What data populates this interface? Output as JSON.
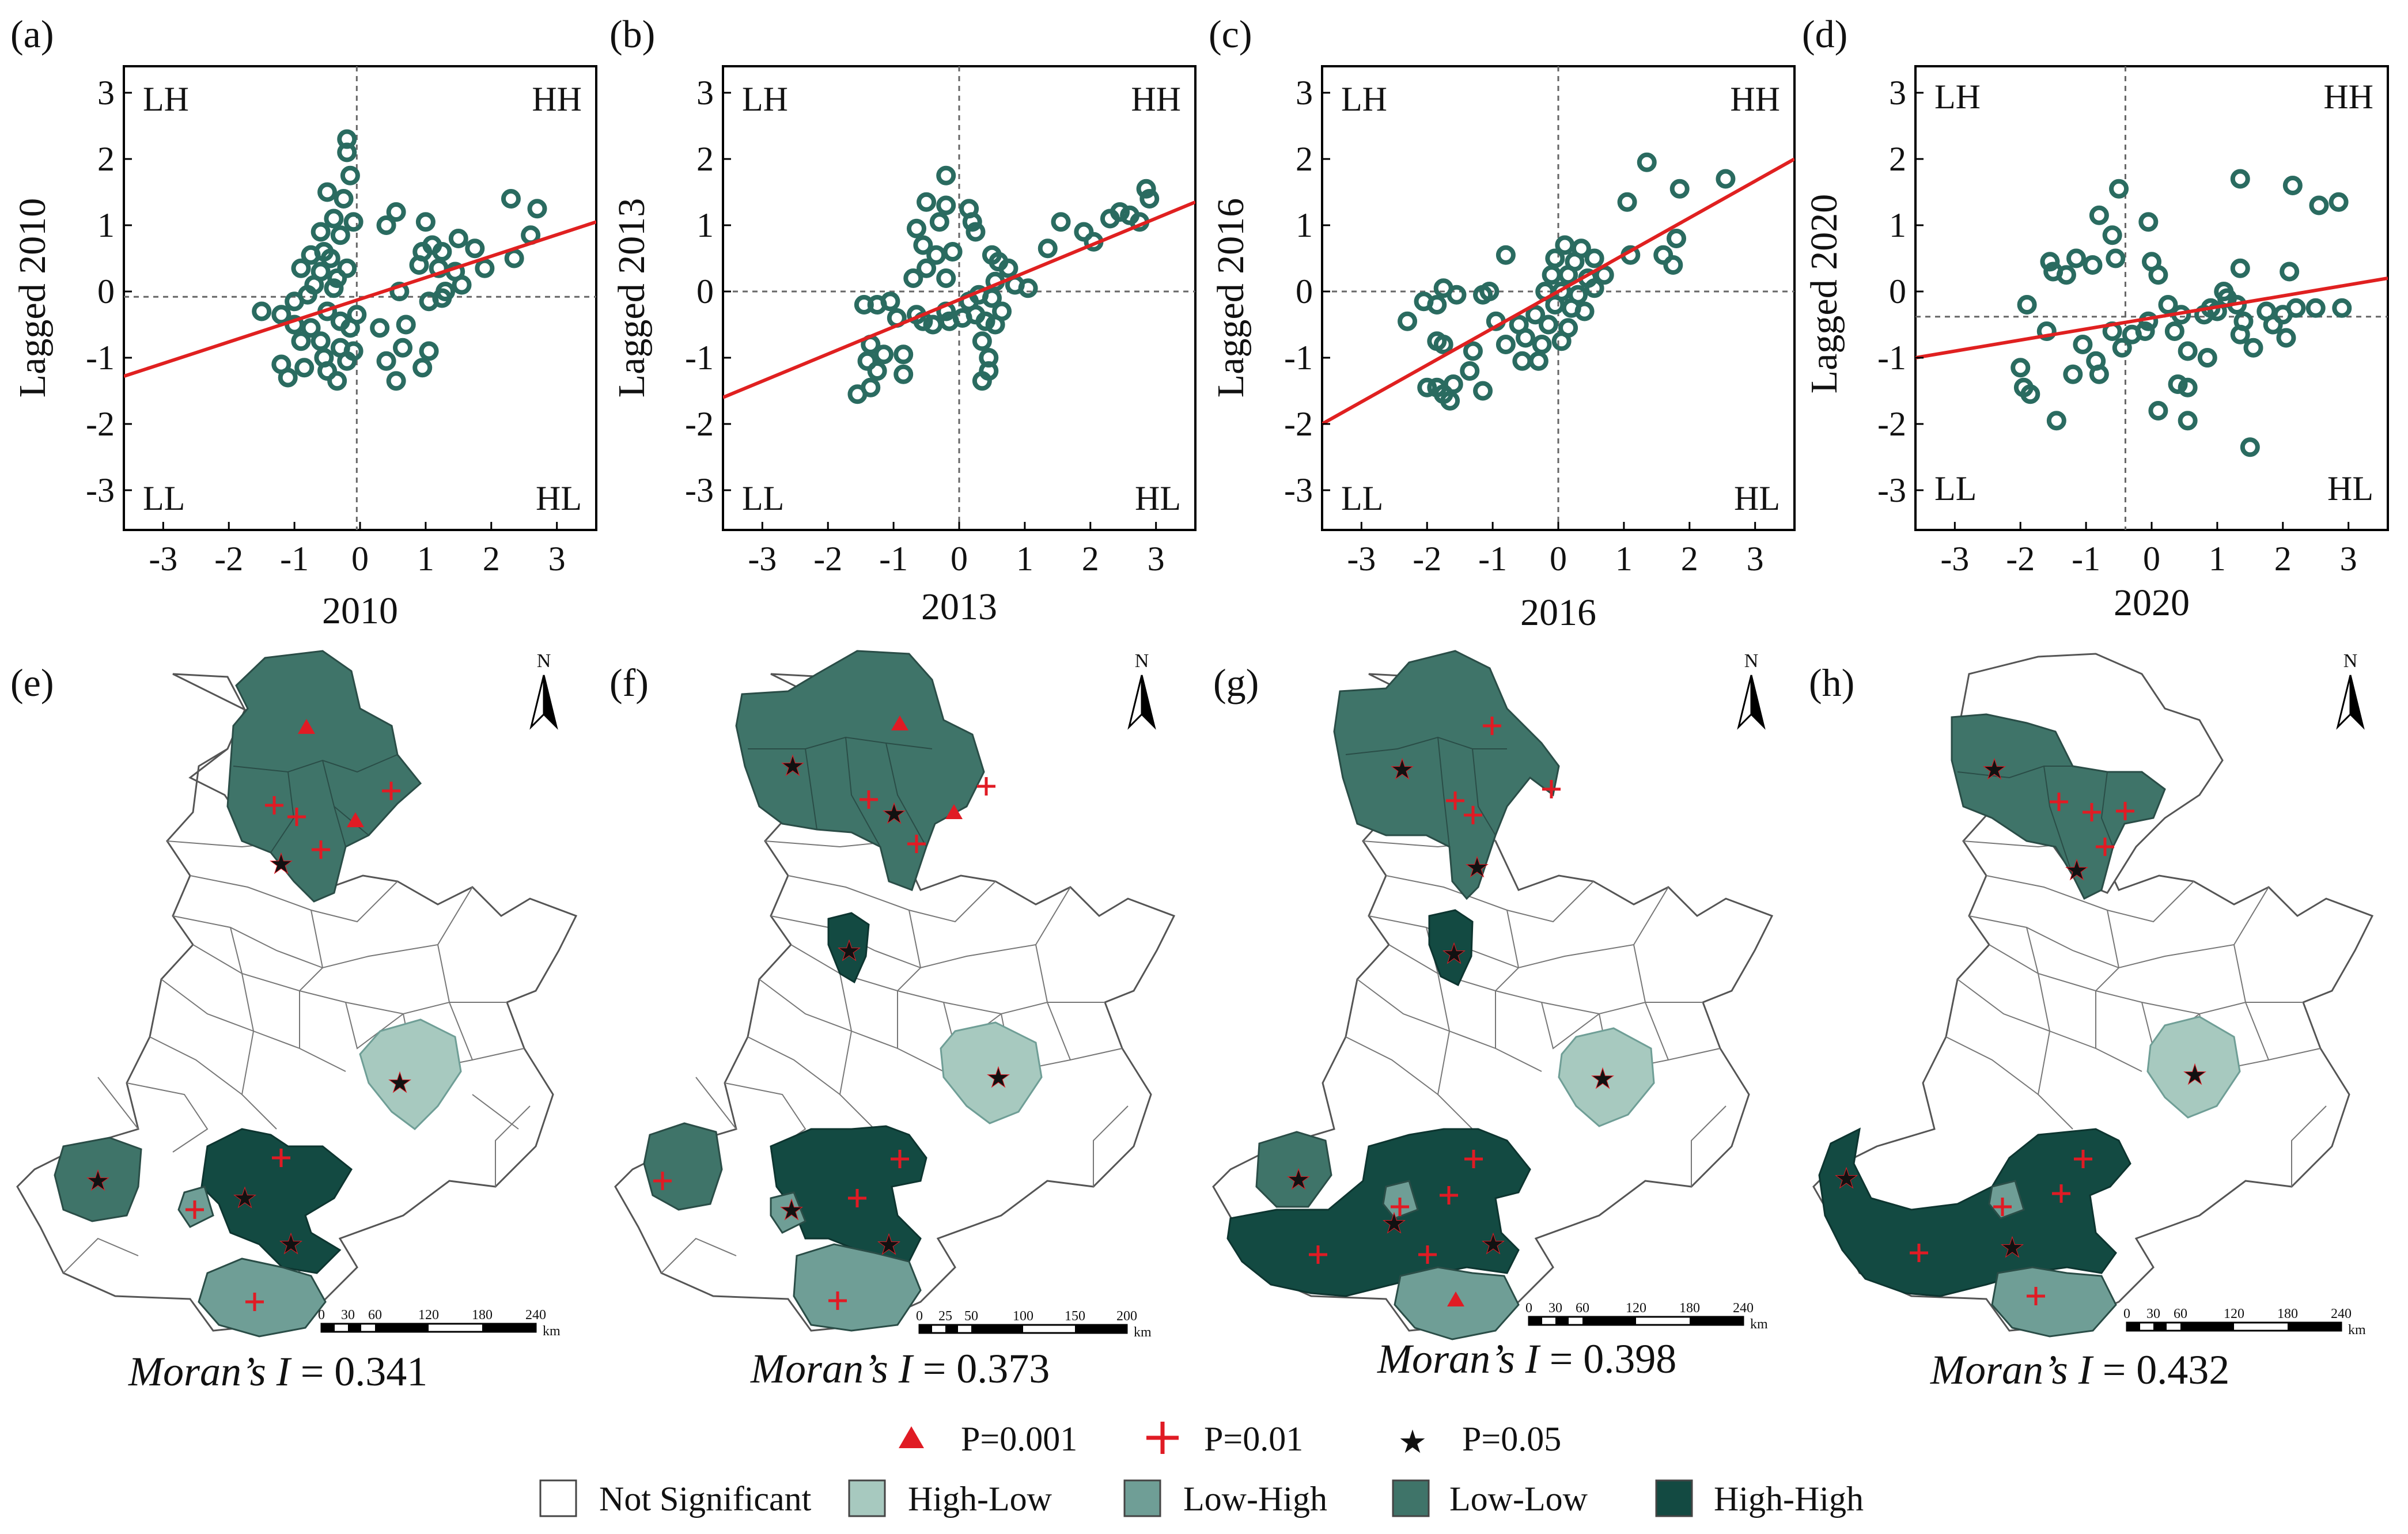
{
  "colors": {
    "not_significant": "#ffffff",
    "high_low": "#a7c9bf",
    "low_high": "#6f9e96",
    "low_low": "#3f7469",
    "high_high": "#134a42",
    "marker": "#e01b24",
    "fit_line": "#e02020",
    "point": "#2a6b60"
  },
  "quadrant_labels": [
    "LH",
    "HH",
    "LL",
    "HL"
  ],
  "chart_data": [
    {
      "type": "scatter",
      "panel": "(a)",
      "xlabel": "2010",
      "ylabel": "Lagged 2010",
      "xlim": [
        -3.6,
        3.6
      ],
      "ylim": [
        -3.6,
        3.4
      ],
      "xticks": [
        -3,
        -2,
        -1,
        0,
        1,
        2,
        3
      ],
      "yticks": [
        -3,
        -2,
        -1,
        0,
        1,
        2,
        3
      ],
      "mean_x": -0.05,
      "mean_y": -0.08,
      "fit_line": {
        "x": [
          -3.6,
          3.6
        ],
        "y": [
          -1.28,
          1.05
        ]
      },
      "points": [
        [
          -0.2,
          2.3
        ],
        [
          -0.2,
          2.1
        ],
        [
          -0.15,
          1.75
        ],
        [
          -0.5,
          1.5
        ],
        [
          -0.25,
          1.4
        ],
        [
          -0.1,
          1.05
        ],
        [
          -0.4,
          1.1
        ],
        [
          -0.6,
          0.9
        ],
        [
          -0.3,
          0.85
        ],
        [
          -0.55,
          0.6
        ],
        [
          -0.75,
          0.55
        ],
        [
          -0.45,
          0.5
        ],
        [
          -0.9,
          0.35
        ],
        [
          -0.6,
          0.3
        ],
        [
          -0.35,
          0.2
        ],
        [
          -0.2,
          0.35
        ],
        [
          -0.7,
          0.1
        ],
        [
          -0.4,
          0.05
        ],
        [
          -1.0,
          -0.15
        ],
        [
          -0.8,
          -0.05
        ],
        [
          -1.5,
          -0.3
        ],
        [
          -1.2,
          -0.35
        ],
        [
          -1.0,
          -0.5
        ],
        [
          -0.75,
          -0.55
        ],
        [
          -0.5,
          -0.3
        ],
        [
          -0.3,
          -0.45
        ],
        [
          -0.15,
          -0.55
        ],
        [
          -0.05,
          -0.35
        ],
        [
          -0.3,
          -0.85
        ],
        [
          -0.6,
          -0.75
        ],
        [
          -0.9,
          -0.75
        ],
        [
          -1.2,
          -1.1
        ],
        [
          -1.1,
          -1.3
        ],
        [
          -0.85,
          -1.15
        ],
        [
          -0.5,
          -1.2
        ],
        [
          -0.35,
          -1.35
        ],
        [
          -0.2,
          -1.05
        ],
        [
          -0.1,
          -0.9
        ],
        [
          -0.55,
          -1.0
        ],
        [
          0.55,
          1.2
        ],
        [
          0.4,
          1.0
        ],
        [
          1.0,
          1.05
        ],
        [
          1.1,
          0.7
        ],
        [
          0.95,
          0.6
        ],
        [
          1.25,
          0.6
        ],
        [
          1.5,
          0.8
        ],
        [
          1.75,
          0.65
        ],
        [
          2.3,
          1.4
        ],
        [
          2.7,
          1.25
        ],
        [
          2.6,
          0.85
        ],
        [
          2.35,
          0.5
        ],
        [
          0.9,
          0.4
        ],
        [
          1.2,
          0.35
        ],
        [
          1.45,
          0.3
        ],
        [
          1.9,
          0.35
        ],
        [
          1.55,
          0.1
        ],
        [
          1.3,
          0.0
        ],
        [
          0.6,
          0.0
        ],
        [
          1.05,
          -0.15
        ],
        [
          1.25,
          -0.1
        ],
        [
          0.7,
          -0.5
        ],
        [
          0.65,
          -0.85
        ],
        [
          1.05,
          -0.9
        ],
        [
          0.95,
          -1.15
        ],
        [
          0.55,
          -1.35
        ],
        [
          0.4,
          -1.05
        ],
        [
          0.3,
          -0.55
        ]
      ]
    },
    {
      "type": "scatter",
      "panel": "(b)",
      "xlabel": "2013",
      "ylabel": "Lagged 2013",
      "xlim": [
        -3.6,
        3.6
      ],
      "ylim": [
        -3.6,
        3.4
      ],
      "xticks": [
        -3,
        -2,
        -1,
        0,
        1,
        2,
        3
      ],
      "yticks": [
        -3,
        -2,
        -1,
        0,
        1,
        2,
        3
      ],
      "mean_x": 0.0,
      "mean_y": 0.0,
      "fit_line": {
        "x": [
          -3.6,
          3.6
        ],
        "y": [
          -1.6,
          1.35
        ]
      },
      "points": [
        [
          -0.2,
          1.75
        ],
        [
          -0.5,
          1.35
        ],
        [
          -0.2,
          1.3
        ],
        [
          0.15,
          1.25
        ],
        [
          0.2,
          1.05
        ],
        [
          -0.3,
          1.05
        ],
        [
          -0.65,
          0.95
        ],
        [
          0.25,
          0.9
        ],
        [
          -0.55,
          0.7
        ],
        [
          -0.35,
          0.55
        ],
        [
          -0.1,
          0.6
        ],
        [
          -0.5,
          0.35
        ],
        [
          -0.2,
          0.2
        ],
        [
          -0.7,
          0.2
        ],
        [
          -1.05,
          -0.15
        ],
        [
          -1.25,
          -0.2
        ],
        [
          -1.45,
          -0.2
        ],
        [
          -0.95,
          -0.4
        ],
        [
          -0.65,
          -0.35
        ],
        [
          -0.4,
          -0.5
        ],
        [
          -0.15,
          -0.45
        ],
        [
          0.05,
          -0.4
        ],
        [
          0.25,
          -0.35
        ],
        [
          0.4,
          -0.45
        ],
        [
          -0.2,
          -0.3
        ],
        [
          -0.55,
          -0.45
        ],
        [
          -1.35,
          -0.8
        ],
        [
          -1.15,
          -0.95
        ],
        [
          -0.85,
          -0.95
        ],
        [
          -1.4,
          -1.05
        ],
        [
          -1.25,
          -1.2
        ],
        [
          -0.85,
          -1.25
        ],
        [
          -1.35,
          -1.45
        ],
        [
          -1.55,
          -1.55
        ],
        [
          0.5,
          0.55
        ],
        [
          0.6,
          0.45
        ],
        [
          0.75,
          0.35
        ],
        [
          0.55,
          0.15
        ],
        [
          0.85,
          0.1
        ],
        [
          1.05,
          0.05
        ],
        [
          0.5,
          -0.1
        ],
        [
          0.3,
          -0.05
        ],
        [
          0.15,
          -0.15
        ],
        [
          0.65,
          -0.3
        ],
        [
          0.55,
          -0.5
        ],
        [
          0.35,
          -0.75
        ],
        [
          0.45,
          -1.0
        ],
        [
          0.45,
          -1.2
        ],
        [
          0.35,
          -1.35
        ],
        [
          1.35,
          0.65
        ],
        [
          1.55,
          1.05
        ],
        [
          1.9,
          0.9
        ],
        [
          2.05,
          0.75
        ],
        [
          2.3,
          1.1
        ],
        [
          2.45,
          1.2
        ],
        [
          2.6,
          1.15
        ],
        [
          2.85,
          1.55
        ],
        [
          2.9,
          1.4
        ],
        [
          2.75,
          1.05
        ]
      ]
    },
    {
      "type": "scatter",
      "panel": "(c)",
      "xlabel": "2016",
      "ylabel": "Lagged 2016",
      "xlim": [
        -3.6,
        3.6
      ],
      "ylim": [
        -3.6,
        3.4
      ],
      "xticks": [
        -3,
        -2,
        -1,
        0,
        1,
        2,
        3
      ],
      "yticks": [
        -3,
        -2,
        -1,
        0,
        1,
        2,
        3
      ],
      "mean_x": 0.0,
      "mean_y": 0.0,
      "fit_line": {
        "x": [
          -3.6,
          3.6
        ],
        "y": [
          -2.0,
          2.0
        ]
      },
      "points": [
        [
          1.35,
          1.95
        ],
        [
          2.55,
          1.7
        ],
        [
          1.85,
          1.55
        ],
        [
          1.05,
          1.35
        ],
        [
          1.8,
          0.8
        ],
        [
          1.6,
          0.55
        ],
        [
          1.75,
          0.4
        ],
        [
          1.1,
          0.55
        ],
        [
          0.7,
          0.25
        ],
        [
          0.55,
          0.5
        ],
        [
          0.35,
          0.65
        ],
        [
          0.1,
          0.7
        ],
        [
          0.25,
          0.45
        ],
        [
          -0.05,
          0.5
        ],
        [
          -0.1,
          0.25
        ],
        [
          0.15,
          0.25
        ],
        [
          0.45,
          0.2
        ],
        [
          0.55,
          0.05
        ],
        [
          0.3,
          -0.05
        ],
        [
          0.05,
          0.0
        ],
        [
          -0.2,
          0.0
        ],
        [
          -0.05,
          -0.2
        ],
        [
          0.2,
          -0.25
        ],
        [
          0.4,
          -0.3
        ],
        [
          0.15,
          -0.55
        ],
        [
          -0.15,
          -0.5
        ],
        [
          -0.35,
          -0.35
        ],
        [
          -0.25,
          -0.8
        ],
        [
          -0.5,
          -0.7
        ],
        [
          -0.6,
          -0.5
        ],
        [
          -0.8,
          -0.8
        ],
        [
          -0.95,
          -0.45
        ],
        [
          -0.55,
          -1.05
        ],
        [
          -0.3,
          -1.05
        ],
        [
          0.05,
          -0.75
        ],
        [
          -1.05,
          0.0
        ],
        [
          -1.15,
          -0.05
        ],
        [
          -0.8,
          0.55
        ],
        [
          -1.55,
          -0.05
        ],
        [
          -1.75,
          0.05
        ],
        [
          -1.85,
          -0.2
        ],
        [
          -2.3,
          -0.45
        ],
        [
          -2.05,
          -0.15
        ],
        [
          -1.85,
          -0.75
        ],
        [
          -1.75,
          -0.8
        ],
        [
          -1.3,
          -0.9
        ],
        [
          -1.35,
          -1.2
        ],
        [
          -1.15,
          -1.5
        ],
        [
          -1.6,
          -1.4
        ],
        [
          -1.85,
          -1.45
        ],
        [
          -1.75,
          -1.55
        ],
        [
          -2.0,
          -1.45
        ],
        [
          -1.65,
          -1.65
        ]
      ]
    },
    {
      "type": "scatter",
      "panel": "(d)",
      "xlabel": "2020",
      "ylabel": "Lagged 2020",
      "xlim": [
        -3.6,
        3.6
      ],
      "ylim": [
        -3.6,
        3.4
      ],
      "xticks": [
        -3,
        -2,
        -1,
        0,
        1,
        2,
        3
      ],
      "yticks": [
        -3,
        -2,
        -1,
        0,
        1,
        2,
        3
      ],
      "mean_x": -0.4,
      "mean_y": -0.38,
      "fit_line": {
        "x": [
          -3.6,
          3.6
        ],
        "y": [
          -1.0,
          0.2
        ]
      },
      "points": [
        [
          -0.5,
          1.55
        ],
        [
          -0.05,
          1.05
        ],
        [
          -0.8,
          1.15
        ],
        [
          -0.6,
          0.85
        ],
        [
          -1.55,
          0.45
        ],
        [
          -1.15,
          0.5
        ],
        [
          -1.5,
          0.3
        ],
        [
          -1.3,
          0.25
        ],
        [
          -0.9,
          0.4
        ],
        [
          -0.55,
          0.5
        ],
        [
          0.0,
          0.45
        ],
        [
          0.1,
          0.25
        ],
        [
          -1.6,
          -0.6
        ],
        [
          -1.9,
          -0.2
        ],
        [
          -2.0,
          -1.15
        ],
        [
          -1.95,
          -1.45
        ],
        [
          -1.85,
          -1.55
        ],
        [
          -1.45,
          -1.95
        ],
        [
          -1.2,
          -1.25
        ],
        [
          -1.05,
          -0.8
        ],
        [
          -0.85,
          -1.05
        ],
        [
          -0.8,
          -1.25
        ],
        [
          -0.6,
          -0.6
        ],
        [
          -0.45,
          -0.85
        ],
        [
          -0.3,
          -0.65
        ],
        [
          -0.05,
          -0.45
        ],
        [
          -0.1,
          -0.6
        ],
        [
          0.35,
          -0.6
        ],
        [
          0.55,
          -0.9
        ],
        [
          0.4,
          -1.4
        ],
        [
          0.55,
          -1.45
        ],
        [
          0.85,
          -1.0
        ],
        [
          0.1,
          -1.8
        ],
        [
          0.55,
          -1.95
        ],
        [
          0.25,
          -0.2
        ],
        [
          0.45,
          -0.35
        ],
        [
          0.8,
          -0.35
        ],
        [
          0.9,
          -0.25
        ],
        [
          1.0,
          -0.3
        ],
        [
          1.15,
          -0.1
        ],
        [
          1.3,
          -0.2
        ],
        [
          1.1,
          0.0
        ],
        [
          1.35,
          0.35
        ],
        [
          1.4,
          -0.45
        ],
        [
          1.35,
          -0.65
        ],
        [
          1.55,
          -0.85
        ],
        [
          1.75,
          -0.3
        ],
        [
          1.85,
          -0.5
        ],
        [
          2.05,
          -0.7
        ],
        [
          2.0,
          -0.35
        ],
        [
          2.2,
          -0.25
        ],
        [
          2.1,
          0.3
        ],
        [
          2.9,
          -0.25
        ],
        [
          2.5,
          -0.25
        ],
        [
          1.35,
          1.7
        ],
        [
          2.15,
          1.6
        ],
        [
          2.55,
          1.3
        ],
        [
          2.85,
          1.35
        ],
        [
          1.5,
          -2.35
        ]
      ]
    }
  ],
  "maps": [
    {
      "panel": "(e)",
      "moran_label": "Moran’s I",
      "moran_value": "= 0.341",
      "scale_ticks": [
        "0",
        "30",
        "60",
        "120",
        "180",
        "240"
      ],
      "scale_unit": "km",
      "north": "N"
    },
    {
      "panel": "(f)",
      "moran_label": "Moran’s I",
      "moran_value": "= 0.373",
      "scale_ticks": [
        "0",
        "25",
        "50",
        "100",
        "150",
        "200"
      ],
      "scale_unit": "km",
      "north": "N"
    },
    {
      "panel": "(g)",
      "moran_label": "Moran’s I",
      "moran_value": "= 0.398",
      "scale_ticks": [
        "0",
        "30",
        "60",
        "120",
        "180",
        "240"
      ],
      "scale_unit": "km",
      "north": "N"
    },
    {
      "panel": "(h)",
      "moran_label": "Moran’s I",
      "moran_value": "= 0.432",
      "scale_ticks": [
        "0",
        "30",
        "60",
        "120",
        "180",
        "240"
      ],
      "scale_unit": "km",
      "north": "N"
    }
  ],
  "legend": {
    "markers": [
      {
        "symbol": "triangle",
        "label": "P=0.001"
      },
      {
        "symbol": "plus",
        "label": "P=0.01"
      },
      {
        "symbol": "star",
        "label": "P=0.05"
      }
    ],
    "categories": [
      {
        "label": "Not Significant",
        "color": "#ffffff"
      },
      {
        "label": "High-Low",
        "color": "#a7c9bf"
      },
      {
        "label": "Low-High",
        "color": "#6f9e96"
      },
      {
        "label": "Low-Low",
        "color": "#3f7469"
      },
      {
        "label": "High-High",
        "color": "#134a42"
      }
    ]
  }
}
